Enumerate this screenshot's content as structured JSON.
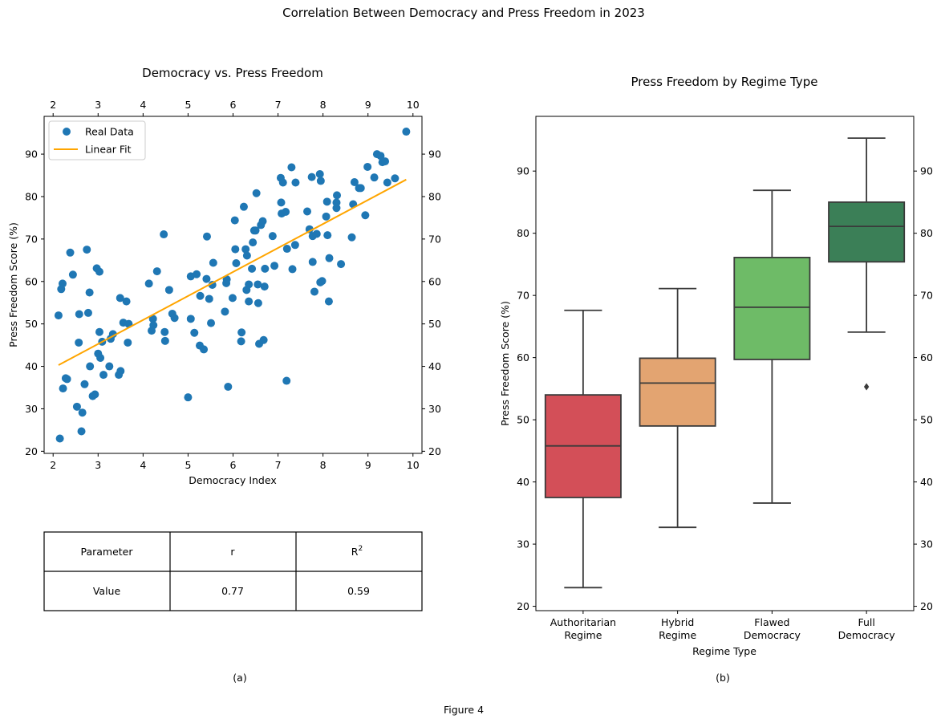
{
  "figure": {
    "suptitle": "Correlation Between Democracy and Press Freedom in 2023",
    "caption": "Figure 4",
    "panel_a_caption": "(a)",
    "panel_b_caption": "(b)"
  },
  "table": {
    "header": [
      "Parameter",
      "r",
      "R"
    ],
    "header_sup": "2",
    "row": [
      "Value",
      "0.77",
      "0.59"
    ]
  },
  "colors": {
    "scatter": "#1f77b4",
    "fit": "#ffa500",
    "box_edge": "#3a3a3a"
  },
  "chart_data": [
    {
      "type": "scatter",
      "title": "Democracy vs. Press Freedom",
      "xlabel": "Democracy Index",
      "ylabel": "Press Freedom Score (%)",
      "xlim": [
        1.8,
        10.2
      ],
      "ylim": [
        19.5,
        98.9
      ],
      "xticks": [
        2,
        3,
        4,
        5,
        6,
        7,
        8,
        9,
        10
      ],
      "yticks": [
        20,
        30,
        40,
        50,
        60,
        70,
        80,
        90
      ],
      "top_xticks": [
        2,
        3,
        4,
        5,
        6,
        7,
        8,
        9,
        10
      ],
      "right_yticks": [
        20,
        30,
        40,
        50,
        60,
        70,
        80,
        90
      ],
      "legend": {
        "placement": "upper-left",
        "entries": [
          "Real Data",
          "Linear Fit"
        ]
      },
      "series": [
        {
          "name": "Real Data",
          "kind": "points",
          "points": [
            [
              2.12,
              52.0
            ],
            [
              2.15,
              23.0
            ],
            [
              2.18,
              58.2
            ],
            [
              2.21,
              59.5
            ],
            [
              2.22,
              34.8
            ],
            [
              2.28,
              37.2
            ],
            [
              2.31,
              37.0
            ],
            [
              2.38,
              66.8
            ],
            [
              2.44,
              61.6
            ],
            [
              2.53,
              30.5
            ],
            [
              2.57,
              45.6
            ],
            [
              2.58,
              52.3
            ],
            [
              2.63,
              24.7
            ],
            [
              2.65,
              29.1
            ],
            [
              2.7,
              35.8
            ],
            [
              2.75,
              67.5
            ],
            [
              2.78,
              52.6
            ],
            [
              2.81,
              57.4
            ],
            [
              2.82,
              40.0
            ],
            [
              2.88,
              33.0
            ],
            [
              2.93,
              33.4
            ],
            [
              2.97,
              63.1
            ],
            [
              3.0,
              43.0
            ],
            [
              3.03,
              48.1
            ],
            [
              3.03,
              62.3
            ],
            [
              3.05,
              42.0
            ],
            [
              3.09,
              45.8
            ],
            [
              3.12,
              38.0
            ],
            [
              3.25,
              40.0
            ],
            [
              3.28,
              46.5
            ],
            [
              3.33,
              47.6
            ],
            [
              3.46,
              38.0
            ],
            [
              3.49,
              56.1
            ],
            [
              3.5,
              38.9
            ],
            [
              3.56,
              50.3
            ],
            [
              3.63,
              55.3
            ],
            [
              3.68,
              50.0
            ],
            [
              3.66,
              45.6
            ],
            [
              4.13,
              59.5
            ],
            [
              4.19,
              48.4
            ],
            [
              4.22,
              51.2
            ],
            [
              4.23,
              49.7
            ],
            [
              4.31,
              62.4
            ],
            [
              4.46,
              71.1
            ],
            [
              4.48,
              48.1
            ],
            [
              4.49,
              46.0
            ],
            [
              4.58,
              58.0
            ],
            [
              4.65,
              52.4
            ],
            [
              4.7,
              51.4
            ],
            [
              5.0,
              32.7
            ],
            [
              5.06,
              61.2
            ],
            [
              5.06,
              51.2
            ],
            [
              5.14,
              47.9
            ],
            [
              5.19,
              61.7
            ],
            [
              5.27,
              56.6
            ],
            [
              5.26,
              44.9
            ],
            [
              5.35,
              44.0
            ],
            [
              5.41,
              60.6
            ],
            [
              5.42,
              70.6
            ],
            [
              5.47,
              55.9
            ],
            [
              5.51,
              50.2
            ],
            [
              5.54,
              59.2
            ],
            [
              5.56,
              64.4
            ],
            [
              5.82,
              52.9
            ],
            [
              5.85,
              59.6
            ],
            [
              5.86,
              60.5
            ],
            [
              5.89,
              35.2
            ],
            [
              5.99,
              56.1
            ],
            [
              6.04,
              74.4
            ],
            [
              6.05,
              67.6
            ],
            [
              6.07,
              64.3
            ],
            [
              6.18,
              45.9
            ],
            [
              6.19,
              48.0
            ],
            [
              6.24,
              77.6
            ],
            [
              6.28,
              67.6
            ],
            [
              6.3,
              58.0
            ],
            [
              6.31,
              66.1
            ],
            [
              6.35,
              59.3
            ],
            [
              6.35,
              55.3
            ],
            [
              6.42,
              63.0
            ],
            [
              6.44,
              69.2
            ],
            [
              6.47,
              72.0
            ],
            [
              6.5,
              72.0
            ],
            [
              6.52,
              80.8
            ],
            [
              6.55,
              59.3
            ],
            [
              6.56,
              54.9
            ],
            [
              6.58,
              45.3
            ],
            [
              6.62,
              73.3
            ],
            [
              6.66,
              74.2
            ],
            [
              6.68,
              46.2
            ],
            [
              6.7,
              58.8
            ],
            [
              6.71,
              63.0
            ],
            [
              6.88,
              70.7
            ],
            [
              6.92,
              63.7
            ],
            [
              7.06,
              84.4
            ],
            [
              7.07,
              78.6
            ],
            [
              7.08,
              76.0
            ],
            [
              7.11,
              83.3
            ],
            [
              7.17,
              76.4
            ],
            [
              7.19,
              36.6
            ],
            [
              7.2,
              67.7
            ],
            [
              7.3,
              86.9
            ],
            [
              7.32,
              62.9
            ],
            [
              7.38,
              68.6
            ],
            [
              7.39,
              83.3
            ],
            [
              7.65,
              76.5
            ],
            [
              7.7,
              72.3
            ],
            [
              7.75,
              84.6
            ],
            [
              7.77,
              64.6
            ],
            [
              7.77,
              70.7
            ],
            [
              7.81,
              57.6
            ],
            [
              7.86,
              71.2
            ],
            [
              7.93,
              85.3
            ],
            [
              7.94,
              59.8
            ],
            [
              7.95,
              83.7
            ],
            [
              7.98,
              60.1
            ],
            [
              8.07,
              75.3
            ],
            [
              8.09,
              78.8
            ],
            [
              8.1,
              70.9
            ],
            [
              8.13,
              55.3
            ],
            [
              8.14,
              65.5
            ],
            [
              8.3,
              77.3
            ],
            [
              8.3,
              78.6
            ],
            [
              8.31,
              80.3
            ],
            [
              8.4,
              64.1
            ],
            [
              8.64,
              70.4
            ],
            [
              8.67,
              78.2
            ],
            [
              8.7,
              83.4
            ],
            [
              8.8,
              82.0
            ],
            [
              8.84,
              82.0
            ],
            [
              8.94,
              75.6
            ],
            [
              8.99,
              87.0
            ],
            [
              9.14,
              84.5
            ],
            [
              9.2,
              90.0
            ],
            [
              9.28,
              89.6
            ],
            [
              9.32,
              88.1
            ],
            [
              9.38,
              88.3
            ],
            [
              9.43,
              83.3
            ],
            [
              9.6,
              84.3
            ],
            [
              9.85,
              95.3
            ]
          ]
        },
        {
          "name": "Linear Fit",
          "kind": "line",
          "x": [
            2.12,
            9.85
          ],
          "y": [
            40.3,
            84.0
          ]
        }
      ]
    },
    {
      "type": "box",
      "title": "Press Freedom by Regime Type",
      "xlabel": "Regime Type",
      "ylabel": "Press Freedom Score (%)",
      "ylim": [
        19.3,
        98.8
      ],
      "yticks": [
        20,
        30,
        40,
        50,
        60,
        70,
        80,
        90
      ],
      "right_yticks": [
        20,
        30,
        40,
        50,
        60,
        70,
        80,
        90
      ],
      "categories": [
        [
          "Authoritarian",
          "Regime"
        ],
        [
          "Hybrid",
          "Regime"
        ],
        [
          "Flawed",
          "Democracy"
        ],
        [
          "Full",
          "Democracy"
        ]
      ],
      "boxes": [
        {
          "min": 23.0,
          "q1": 37.5,
          "median": 45.8,
          "q3": 54.0,
          "max": 67.6,
          "outliers": [],
          "color": "#d34f58"
        },
        {
          "min": 32.7,
          "q1": 49.0,
          "median": 55.9,
          "q3": 59.9,
          "max": 71.1,
          "outliers": [],
          "color": "#e3a471"
        },
        {
          "min": 36.6,
          "q1": 59.7,
          "median": 68.1,
          "q3": 76.1,
          "max": 86.9,
          "outliers": [],
          "color": "#6ebb67"
        },
        {
          "min": 64.1,
          "q1": 75.4,
          "median": 81.1,
          "q3": 85.0,
          "max": 95.3,
          "outliers": [
            55.3
          ],
          "color": "#3b7f57"
        }
      ]
    }
  ]
}
